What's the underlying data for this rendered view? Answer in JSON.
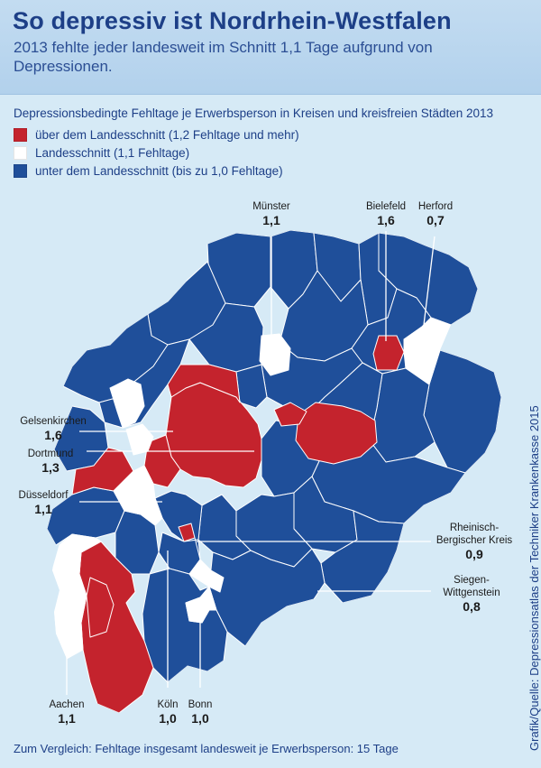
{
  "header": {
    "title": "So depressiv ist Nordrhein-Westfalen",
    "subtitle": "2013 fehlte jeder landesweit im Schnitt 1,1 Tage aufgrund von Depressionen."
  },
  "legend": {
    "heading": "Depressionsbedingte Fehltage je Erwerbsperson in Kreisen und kreisfreien Städten 2013",
    "items": [
      {
        "label": "über dem Landesschnitt (1,2 Fehltage und mehr)",
        "color": "#c4232d"
      },
      {
        "label": "Landesschnitt (1,1 Fehltage)",
        "color": "#ffffff"
      },
      {
        "label": "unter dem Landesschnitt (bis zu 1,0 Fehltage)",
        "color": "#1f4f9a"
      }
    ]
  },
  "colors": {
    "above": "#c4232d",
    "average": "#ffffff",
    "below": "#1f4f9a",
    "border": "#ffffff"
  },
  "labels": {
    "muenster": {
      "name": "Münster",
      "value": "1,1"
    },
    "bielefeld": {
      "name": "Bielefeld",
      "value": "1,6"
    },
    "herford": {
      "name": "Herford",
      "value": "0,7"
    },
    "gelsenkirchen": {
      "name": "Gelsenkirchen",
      "value": "1,6"
    },
    "dortmund": {
      "name": "Dortmund",
      "value": "1,3"
    },
    "duesseldorf": {
      "name": "Düsseldorf",
      "value": "1,1"
    },
    "rbk": {
      "name": "Rheinisch-Bergischer Kreis",
      "value": "0,9"
    },
    "siegen": {
      "name": "Siegen-Wittgenstein",
      "value": "0,8"
    },
    "koeln": {
      "name": "Köln",
      "value": "1,0"
    },
    "bonn": {
      "name": "Bonn",
      "value": "1,0"
    },
    "aachen": {
      "name": "Aachen",
      "value": "1,1"
    }
  },
  "credit": "Grafik/Quelle: Depressionsatlas der Techniker Krankenkasse 2015",
  "footer": "Zum Vergleich: Fehltage insgesamt landesweit je Erwerbsperson: 15 Tage"
}
